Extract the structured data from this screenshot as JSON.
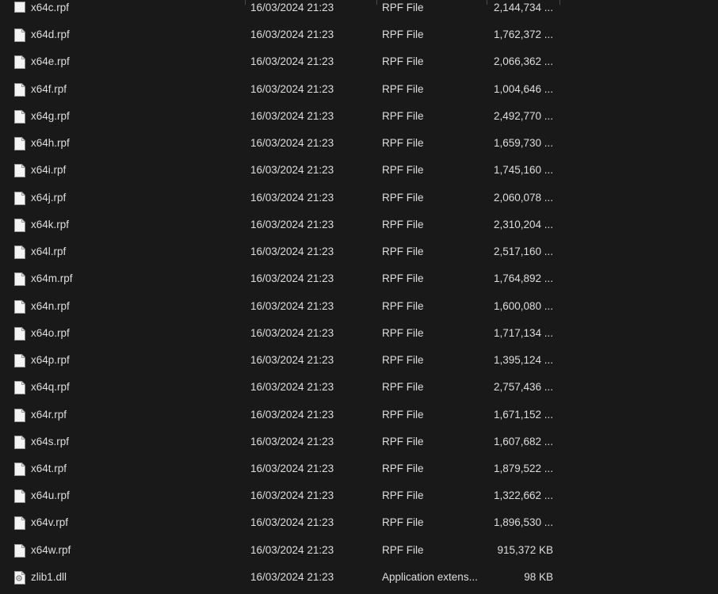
{
  "files": [
    {
      "name": "x64c.rpf",
      "date": "16/03/2024 21:23",
      "type": "RPF File",
      "size": "2,144,734 ...",
      "icon": "file-icon"
    },
    {
      "name": "x64d.rpf",
      "date": "16/03/2024 21:23",
      "type": "RPF File",
      "size": "1,762,372 ...",
      "icon": "file-icon"
    },
    {
      "name": "x64e.rpf",
      "date": "16/03/2024 21:23",
      "type": "RPF File",
      "size": "2,066,362 ...",
      "icon": "file-icon"
    },
    {
      "name": "x64f.rpf",
      "date": "16/03/2024 21:23",
      "type": "RPF File",
      "size": "1,004,646 ...",
      "icon": "file-icon"
    },
    {
      "name": "x64g.rpf",
      "date": "16/03/2024 21:23",
      "type": "RPF File",
      "size": "2,492,770 ...",
      "icon": "file-icon"
    },
    {
      "name": "x64h.rpf",
      "date": "16/03/2024 21:23",
      "type": "RPF File",
      "size": "1,659,730 ...",
      "icon": "file-icon"
    },
    {
      "name": "x64i.rpf",
      "date": "16/03/2024 21:23",
      "type": "RPF File",
      "size": "1,745,160 ...",
      "icon": "file-icon"
    },
    {
      "name": "x64j.rpf",
      "date": "16/03/2024 21:23",
      "type": "RPF File",
      "size": "2,060,078 ...",
      "icon": "file-icon"
    },
    {
      "name": "x64k.rpf",
      "date": "16/03/2024 21:23",
      "type": "RPF File",
      "size": "2,310,204 ...",
      "icon": "file-icon"
    },
    {
      "name": "x64l.rpf",
      "date": "16/03/2024 21:23",
      "type": "RPF File",
      "size": "2,517,160 ...",
      "icon": "file-icon"
    },
    {
      "name": "x64m.rpf",
      "date": "16/03/2024 21:23",
      "type": "RPF File",
      "size": "1,764,892 ...",
      "icon": "file-icon"
    },
    {
      "name": "x64n.rpf",
      "date": "16/03/2024 21:23",
      "type": "RPF File",
      "size": "1,600,080 ...",
      "icon": "file-icon"
    },
    {
      "name": "x64o.rpf",
      "date": "16/03/2024 21:23",
      "type": "RPF File",
      "size": "1,717,134 ...",
      "icon": "file-icon"
    },
    {
      "name": "x64p.rpf",
      "date": "16/03/2024 21:23",
      "type": "RPF File",
      "size": "1,395,124 ...",
      "icon": "file-icon"
    },
    {
      "name": "x64q.rpf",
      "date": "16/03/2024 21:23",
      "type": "RPF File",
      "size": "2,757,436 ...",
      "icon": "file-icon"
    },
    {
      "name": "x64r.rpf",
      "date": "16/03/2024 21:23",
      "type": "RPF File",
      "size": "1,671,152 ...",
      "icon": "file-icon"
    },
    {
      "name": "x64s.rpf",
      "date": "16/03/2024 21:23",
      "type": "RPF File",
      "size": "1,607,682 ...",
      "icon": "file-icon"
    },
    {
      "name": "x64t.rpf",
      "date": "16/03/2024 21:23",
      "type": "RPF File",
      "size": "1,879,522 ...",
      "icon": "file-icon"
    },
    {
      "name": "x64u.rpf",
      "date": "16/03/2024 21:23",
      "type": "RPF File",
      "size": "1,322,662 ...",
      "icon": "file-icon"
    },
    {
      "name": "x64v.rpf",
      "date": "16/03/2024 21:23",
      "type": "RPF File",
      "size": "1,896,530 ...",
      "icon": "file-icon"
    },
    {
      "name": "x64w.rpf",
      "date": "16/03/2024 21:23",
      "type": "RPF File",
      "size": "915,372 KB",
      "icon": "file-icon"
    },
    {
      "name": "zlib1.dll",
      "date": "16/03/2024 21:23",
      "type": "Application extens...",
      "size": "98 KB",
      "icon": "dll-file-icon"
    }
  ]
}
